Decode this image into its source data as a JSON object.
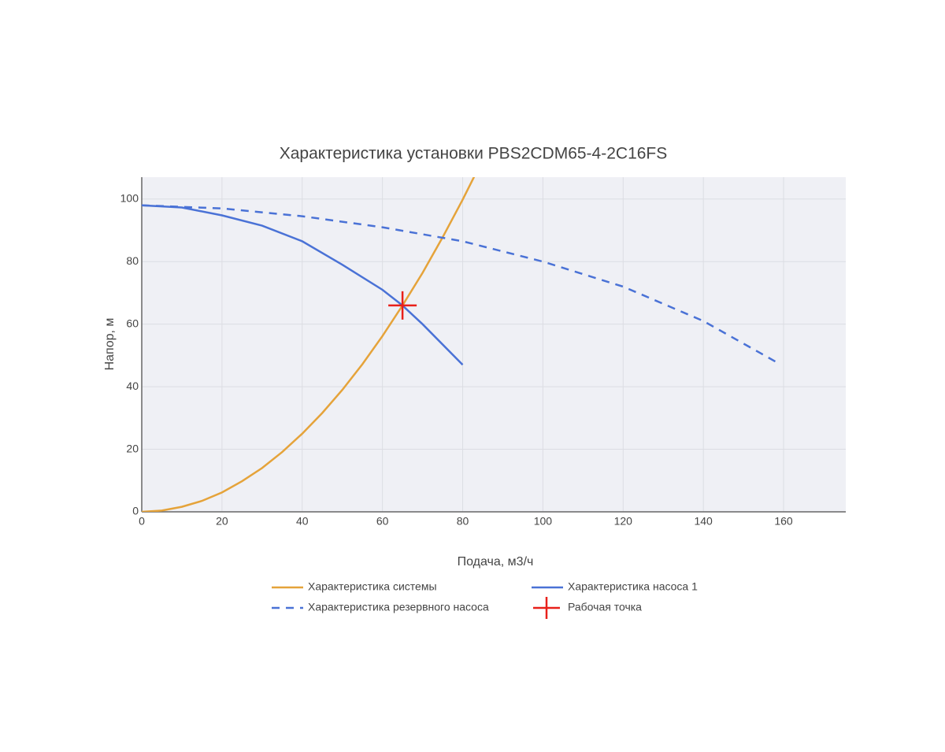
{
  "chart_data": {
    "type": "line",
    "title": "Характеристика установки PBS2CDM65-4-2C16FS",
    "x_label": "Подача, м3/ч",
    "y_label": "Напор, м",
    "xlim": [
      0,
      175.5
    ],
    "ylim": [
      0,
      107
    ],
    "xticks": [
      0,
      20,
      40,
      60,
      80,
      100,
      120,
      140,
      160
    ],
    "yticks": [
      0,
      20,
      40,
      60,
      80,
      100
    ],
    "grid": true,
    "series": [
      {
        "name": "Характеристика системы",
        "color": "#e5a33a",
        "dash": "solid",
        "mode": "lines",
        "x": [
          0,
          5,
          10,
          15,
          20,
          25,
          30,
          35,
          40,
          45,
          50,
          55,
          60,
          65,
          70,
          75,
          80,
          83
        ],
        "values": [
          0,
          0.4,
          1.6,
          3.5,
          6.2,
          9.8,
          14,
          19.1,
          25,
          31.6,
          39,
          47.2,
          56.2,
          66,
          76.4,
          87.8,
          99.8,
          107.5
        ]
      },
      {
        "name": "Характеристика насоса 1",
        "color": "#4a72d6",
        "dash": "solid",
        "mode": "lines",
        "x": [
          0,
          10,
          20,
          30,
          40,
          50,
          60,
          65,
          70,
          80
        ],
        "values": [
          98,
          97.3,
          94.8,
          91.5,
          86.5,
          79,
          71,
          66,
          60,
          47
        ]
      },
      {
        "name": "Характеристика резервного насоса",
        "color": "#4a72d6",
        "dash": "dash",
        "mode": "lines",
        "x": [
          0,
          20,
          40,
          60,
          80,
          100,
          120,
          140,
          158
        ],
        "values": [
          98,
          97,
          94.5,
          91,
          86.5,
          80,
          72,
          61,
          48
        ]
      },
      {
        "name": "Рабочая точка",
        "color": "#e8201a",
        "mode": "markers",
        "marker": "cross",
        "x": [
          65
        ],
        "values": [
          66
        ]
      }
    ]
  }
}
